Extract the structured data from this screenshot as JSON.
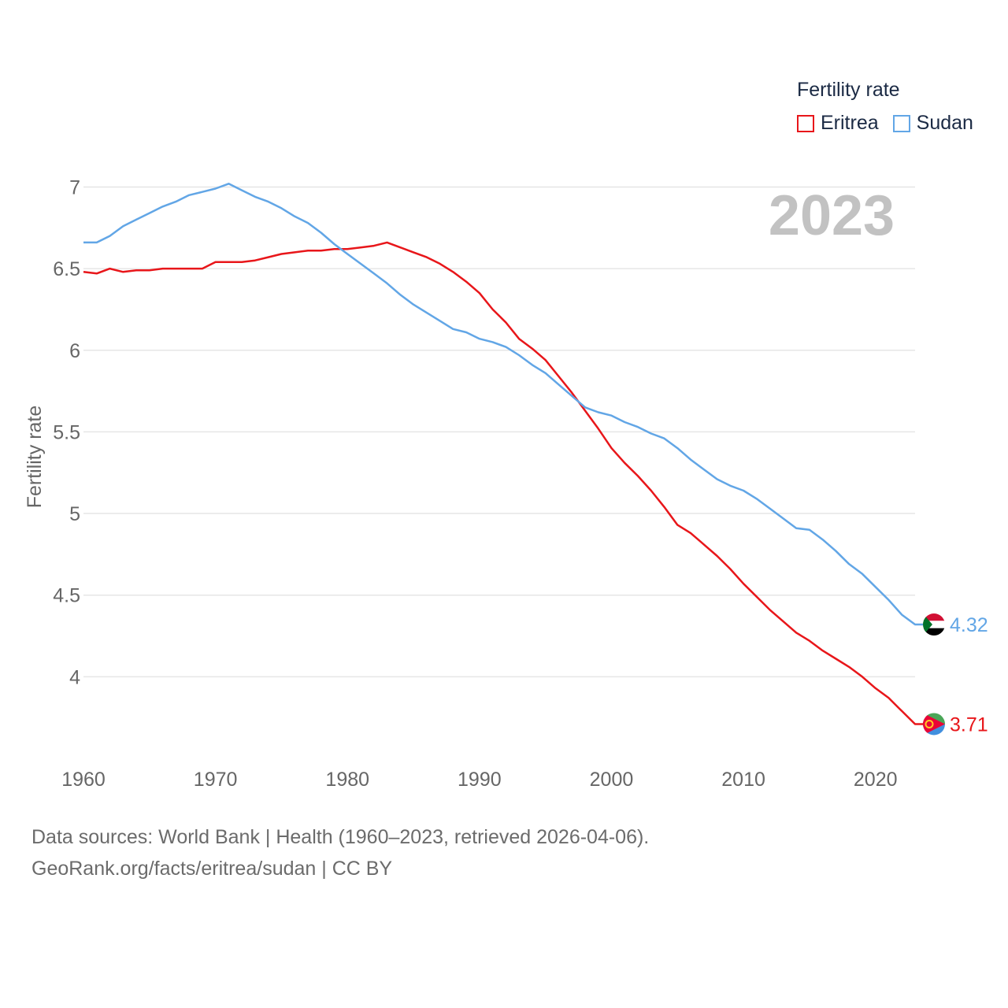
{
  "legend": {
    "title": "Fertility rate",
    "items": [
      {
        "label": "Eritrea",
        "color": "#e8161a"
      },
      {
        "label": "Sudan",
        "color": "#62a6e6"
      }
    ]
  },
  "year_label": "2023",
  "source": {
    "line1": "Data sources: World Bank | Health (1960–2023, retrieved 2026-04-06).",
    "line2": "GeoRank.org/facts/eritrea/sudan | CC BY"
  },
  "chart_data": {
    "type": "line",
    "title": "",
    "xlabel": "",
    "ylabel": "Fertility rate",
    "xlim": [
      1960,
      2023
    ],
    "ylim": [
      3.5,
      7.2
    ],
    "xticks": [
      1960,
      1970,
      1980,
      1990,
      2000,
      2010,
      2020
    ],
    "yticks": [
      {
        "value": 4,
        "label": "4"
      },
      {
        "value": 4.5,
        "label": "4.5"
      },
      {
        "value": 5,
        "label": "5"
      },
      {
        "value": 5.5,
        "label": "5.5"
      },
      {
        "value": 6,
        "label": "6"
      },
      {
        "value": 6.5,
        "label": "6.5"
      },
      {
        "value": 7,
        "label": "7"
      }
    ],
    "grid": true,
    "legend_position": "top-right",
    "x": [
      1960,
      1961,
      1962,
      1963,
      1964,
      1965,
      1966,
      1967,
      1968,
      1969,
      1970,
      1971,
      1972,
      1973,
      1974,
      1975,
      1976,
      1977,
      1978,
      1979,
      1980,
      1981,
      1982,
      1983,
      1984,
      1985,
      1986,
      1987,
      1988,
      1989,
      1990,
      1991,
      1992,
      1993,
      1994,
      1995,
      1996,
      1997,
      1998,
      1999,
      2000,
      2001,
      2002,
      2003,
      2004,
      2005,
      2006,
      2007,
      2008,
      2009,
      2010,
      2011,
      2012,
      2013,
      2014,
      2015,
      2016,
      2017,
      2018,
      2019,
      2020,
      2021,
      2022,
      2023
    ],
    "series": [
      {
        "name": "Eritrea",
        "color": "#e8161a",
        "end_label": "3.71",
        "values": [
          6.48,
          6.47,
          6.5,
          6.48,
          6.49,
          6.49,
          6.5,
          6.5,
          6.5,
          6.5,
          6.54,
          6.54,
          6.54,
          6.55,
          6.57,
          6.59,
          6.6,
          6.61,
          6.61,
          6.62,
          6.62,
          6.63,
          6.64,
          6.66,
          6.63,
          6.6,
          6.57,
          6.53,
          6.48,
          6.42,
          6.35,
          6.25,
          6.17,
          6.07,
          6.01,
          5.94,
          5.84,
          5.74,
          5.63,
          5.52,
          5.4,
          5.31,
          5.23,
          5.14,
          5.04,
          4.93,
          4.88,
          4.81,
          4.74,
          4.66,
          4.57,
          4.49,
          4.41,
          4.34,
          4.27,
          4.22,
          4.16,
          4.11,
          4.06,
          4.0,
          3.93,
          3.87,
          3.79,
          3.71
        ]
      },
      {
        "name": "Sudan",
        "color": "#62a6e6",
        "end_label": "4.32",
        "values": [
          6.66,
          6.66,
          6.7,
          6.76,
          6.8,
          6.84,
          6.88,
          6.91,
          6.95,
          6.97,
          6.99,
          7.02,
          6.98,
          6.94,
          6.91,
          6.87,
          6.82,
          6.78,
          6.72,
          6.65,
          6.59,
          6.53,
          6.47,
          6.41,
          6.34,
          6.28,
          6.23,
          6.18,
          6.13,
          6.11,
          6.07,
          6.05,
          6.02,
          5.97,
          5.91,
          5.86,
          5.79,
          5.72,
          5.65,
          5.62,
          5.6,
          5.56,
          5.53,
          5.49,
          5.46,
          5.4,
          5.33,
          5.27,
          5.21,
          5.17,
          5.14,
          5.09,
          5.03,
          4.97,
          4.91,
          4.9,
          4.84,
          4.77,
          4.69,
          4.63,
          4.55,
          4.47,
          4.38,
          4.32
        ]
      }
    ]
  }
}
